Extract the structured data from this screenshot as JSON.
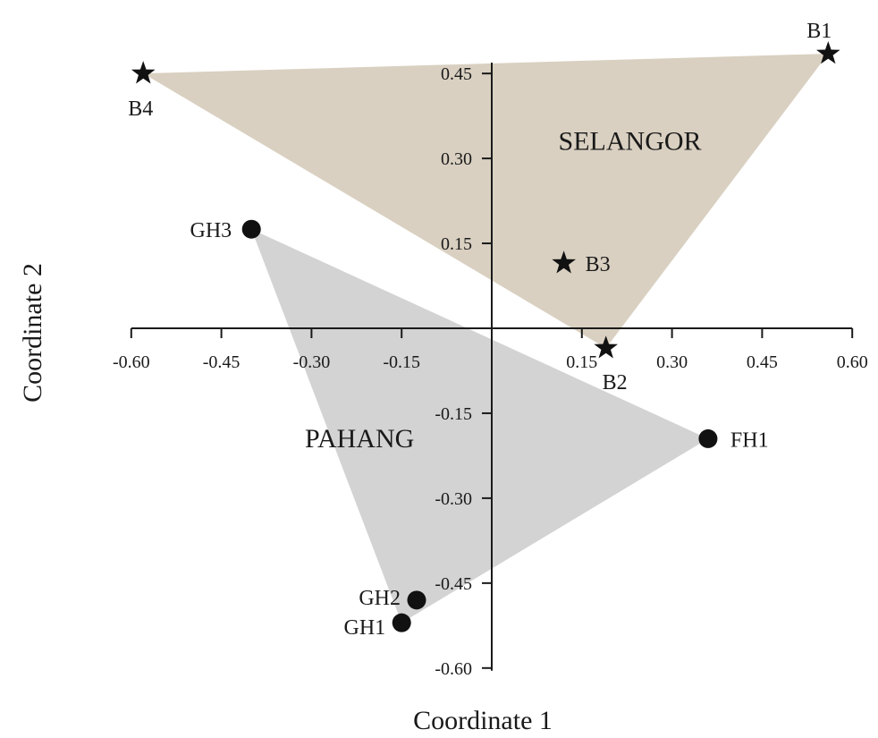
{
  "chart_data": {
    "type": "scatter",
    "xlabel": "Coordinate 1",
    "ylabel": "Coordinate 2",
    "xlim": [
      -0.6,
      0.6
    ],
    "ylim": [
      -0.6,
      0.45
    ],
    "x_ticks": [
      "-0.60",
      "-0.45",
      "-0.30",
      "-0.15",
      "0.15",
      "0.30",
      "0.45",
      "0.60"
    ],
    "x_tick_values": [
      -0.6,
      -0.45,
      -0.3,
      -0.15,
      0.15,
      0.3,
      0.45,
      0.6
    ],
    "y_ticks": [
      "0.45",
      "0.30",
      "0.15",
      "-0.15",
      "-0.30",
      "-0.45",
      "-0.60"
    ],
    "y_tick_values": [
      0.45,
      0.3,
      0.15,
      -0.15,
      -0.3,
      -0.45,
      -0.6
    ],
    "groups": [
      {
        "name": "SELANGOR",
        "color": "#d9d0c1",
        "marker": "star",
        "hull": [
          "B4",
          "B1",
          "B2"
        ],
        "label_at": [
          0.23,
          0.315
        ],
        "points": [
          {
            "label": "B1",
            "x": 0.56,
            "y": 0.485
          },
          {
            "label": "B2",
            "x": 0.19,
            "y": -0.035
          },
          {
            "label": "B3",
            "x": 0.12,
            "y": 0.115
          },
          {
            "label": "B4",
            "x": -0.58,
            "y": 0.45
          }
        ]
      },
      {
        "name": "PAHANG",
        "color": "#d3d3d3",
        "marker": "circle",
        "hull": [
          "GH3",
          "FH1",
          "GH1"
        ],
        "label_at": [
          -0.22,
          -0.21
        ],
        "points": [
          {
            "label": "GH3",
            "x": -0.4,
            "y": 0.175
          },
          {
            "label": "FH1",
            "x": 0.36,
            "y": -0.195
          },
          {
            "label": "GH2",
            "x": -0.125,
            "y": -0.48
          },
          {
            "label": "GH1",
            "x": -0.15,
            "y": -0.52
          }
        ]
      }
    ]
  }
}
